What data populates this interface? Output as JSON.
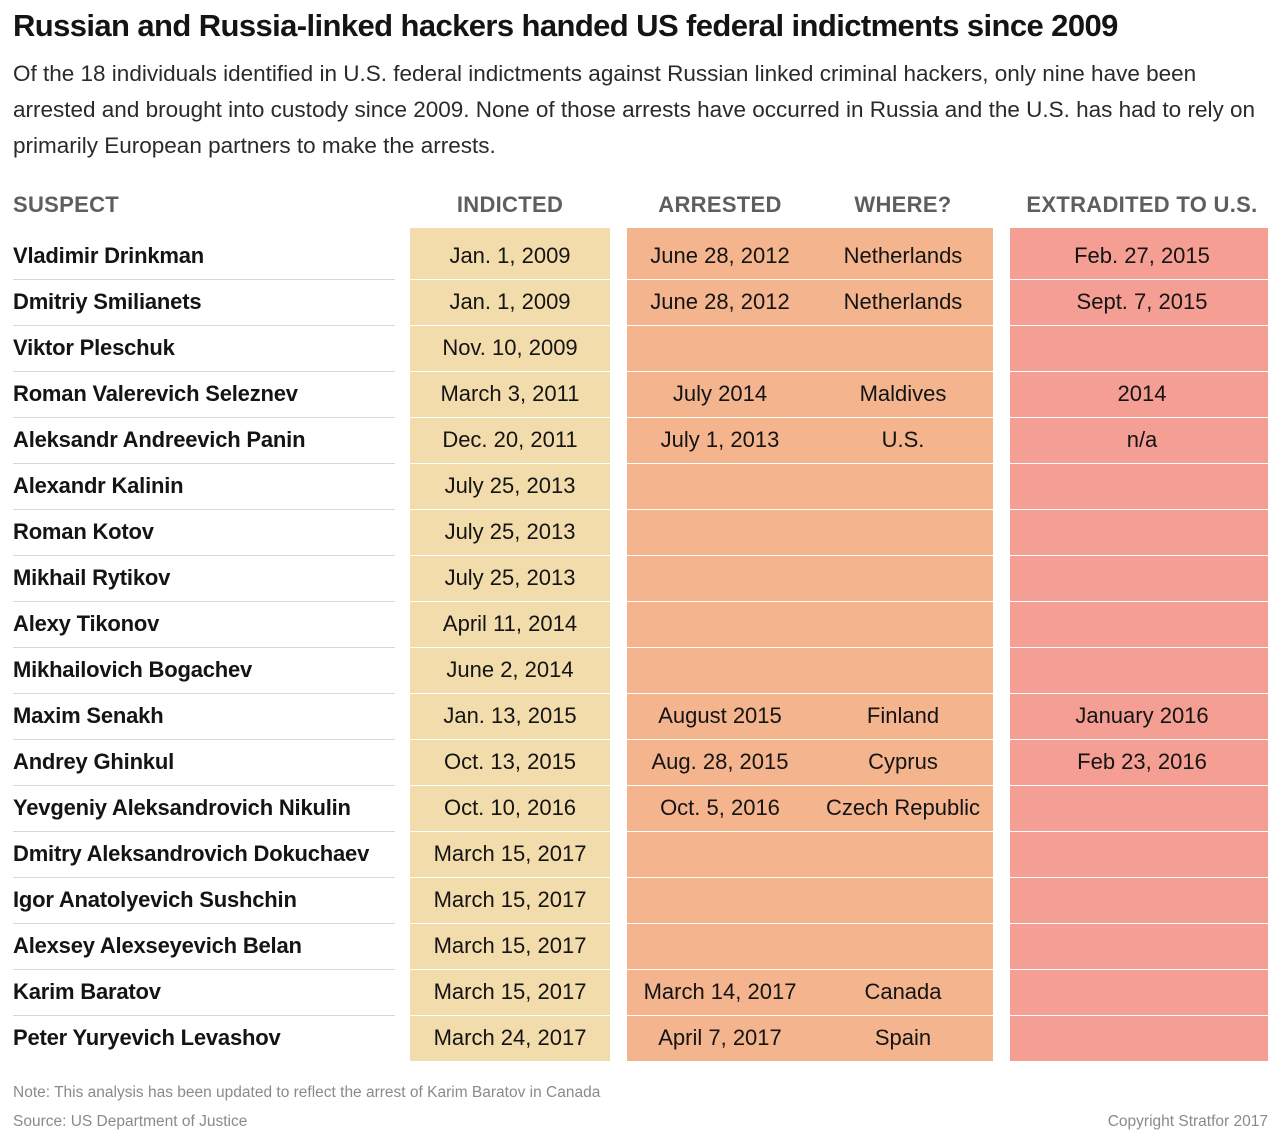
{
  "title": "Russian and Russia-linked hackers handed US federal indictments since 2009",
  "subtitle": "Of the 18 individuals identified in U.S. federal indictments against Russian linked criminal hackers, only nine have been arrested and brought into custody since 2009. None of those arrests have occurred in Russia and the U.S. has had to rely on primarily European partners to make the arrests.",
  "colors": {
    "indicted": "#f2dcac",
    "arrested": "#f4b48e",
    "extradited": "#f59e94"
  },
  "chart_data": {
    "type": "table",
    "columns": [
      "SUSPECT",
      "INDICTED",
      "ARRESTED",
      "WHERE?",
      "EXTRADITED TO U.S."
    ],
    "rows": [
      {
        "suspect": "Vladimir Drinkman",
        "indicted": "Jan. 1, 2009",
        "arrested": "June 28, 2012",
        "where": "Netherlands",
        "extradited": "Feb. 27, 2015"
      },
      {
        "suspect": "Dmitriy Smilianets",
        "indicted": "Jan. 1, 2009",
        "arrested": "June 28, 2012",
        "where": "Netherlands",
        "extradited": "Sept. 7, 2015"
      },
      {
        "suspect": "Viktor Pleschuk",
        "indicted": "Nov. 10, 2009",
        "arrested": "",
        "where": "",
        "extradited": ""
      },
      {
        "suspect": "Roman Valerevich Seleznev",
        "indicted": "March 3, 2011",
        "arrested": "July 2014",
        "where": "Maldives",
        "extradited": "2014"
      },
      {
        "suspect": "Aleksandr Andreevich Panin",
        "indicted": "Dec. 20, 2011",
        "arrested": "July 1, 2013",
        "where": "U.S.",
        "extradited": "n/a"
      },
      {
        "suspect": "Alexandr Kalinin",
        "indicted": "July 25, 2013",
        "arrested": "",
        "where": "",
        "extradited": ""
      },
      {
        "suspect": "Roman Kotov",
        "indicted": "July 25, 2013",
        "arrested": "",
        "where": "",
        "extradited": ""
      },
      {
        "suspect": "Mikhail Rytikov",
        "indicted": "July 25, 2013",
        "arrested": "",
        "where": "",
        "extradited": ""
      },
      {
        "suspect": "Alexy Tikonov",
        "indicted": "April 11, 2014",
        "arrested": "",
        "where": "",
        "extradited": ""
      },
      {
        "suspect": "Mikhailovich Bogachev",
        "indicted": "June 2, 2014",
        "arrested": "",
        "where": "",
        "extradited": ""
      },
      {
        "suspect": "Maxim Senakh",
        "indicted": "Jan. 13, 2015",
        "arrested": "August 2015",
        "where": "Finland",
        "extradited": "January 2016"
      },
      {
        "suspect": "Andrey Ghinkul",
        "indicted": "Oct. 13, 2015",
        "arrested": "Aug. 28, 2015",
        "where": "Cyprus",
        "extradited": "Feb 23, 2016"
      },
      {
        "suspect": "Yevgeniy Aleksandrovich Nikulin",
        "indicted": "Oct. 10, 2016",
        "arrested": "Oct. 5, 2016",
        "where": "Czech Republic",
        "extradited": ""
      },
      {
        "suspect": "Dmitry Aleksandrovich Dokuchaev",
        "indicted": "March 15, 2017",
        "arrested": "",
        "where": "",
        "extradited": ""
      },
      {
        "suspect": "Igor Anatolyevich Sushchin",
        "indicted": "March 15, 2017",
        "arrested": "",
        "where": "",
        "extradited": ""
      },
      {
        "suspect": "Alexsey Alexseyevich Belan",
        "indicted": "March 15, 2017",
        "arrested": "",
        "where": "",
        "extradited": ""
      },
      {
        "suspect": "Karim Baratov",
        "indicted": "March 15, 2017",
        "arrested": "March 14, 2017",
        "where": "Canada",
        "extradited": ""
      },
      {
        "suspect": "Peter Yuryevich Levashov",
        "indicted": "March 24, 2017",
        "arrested": "April 7, 2017",
        "where": "Spain",
        "extradited": ""
      }
    ]
  },
  "footer": {
    "note": "Note: This analysis has been updated to reflect the arrest of Karim Baratov in Canada",
    "source": "Source: US Department of Justice",
    "copyright": "Copyright Stratfor 2017"
  }
}
